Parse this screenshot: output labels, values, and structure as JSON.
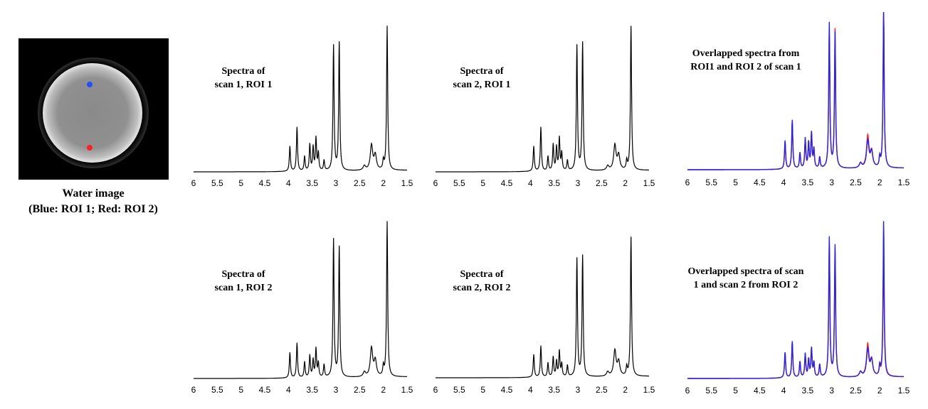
{
  "water_image": {
    "caption_line1": "Water image",
    "caption_line2": "(Blue: ROI 1; Red: ROI 2)",
    "roi1_color": "#1f4fff",
    "roi2_color": "#ff2020"
  },
  "chart_data": [
    {
      "id": "s1r1",
      "type": "line",
      "title_lines": [
        "Spectra of",
        "scan 1, ROI 1"
      ],
      "xlim": [
        6,
        1.5
      ],
      "xticks": [
        "6",
        "5.5",
        "5",
        "4.5",
        "4",
        "3.5",
        "3",
        "2.5",
        "2",
        "1.5"
      ],
      "series": [
        {
          "color": "#000000",
          "peaks": [
            [
              3.05,
              0.85
            ],
            [
              2.93,
              0.87
            ],
            [
              1.92,
              0.98
            ],
            [
              3.82,
              0.3
            ],
            [
              3.97,
              0.17
            ],
            [
              3.55,
              0.18
            ],
            [
              3.48,
              0.16
            ],
            [
              3.42,
              0.22
            ],
            [
              3.37,
              0.12
            ],
            [
              3.66,
              0.1
            ],
            [
              2.25,
              0.17
            ],
            [
              2.17,
              0.1
            ],
            [
              3.25,
              0.07
            ],
            [
              2.0,
              0.06
            ],
            [
              2.4,
              0.03
            ]
          ]
        }
      ]
    },
    {
      "id": "s2r1",
      "type": "line",
      "title_lines": [
        "Spectra of",
        "scan 2, ROI 1"
      ],
      "xlim": [
        6,
        1.5
      ],
      "xticks": [
        "6",
        "5.5",
        "5",
        "4.5",
        "4",
        "3.5",
        "3",
        "2.5",
        "2",
        "1.5"
      ],
      "series": [
        {
          "color": "#000000",
          "peaks": [
            [
              3.02,
              0.85
            ],
            [
              2.9,
              0.87
            ],
            [
              1.88,
              0.98
            ],
            [
              3.78,
              0.3
            ],
            [
              3.93,
              0.17
            ],
            [
              3.52,
              0.18
            ],
            [
              3.45,
              0.16
            ],
            [
              3.39,
              0.22
            ],
            [
              3.34,
              0.12
            ],
            [
              3.63,
              0.1
            ],
            [
              2.22,
              0.17
            ],
            [
              2.14,
              0.1
            ],
            [
              3.22,
              0.07
            ],
            [
              1.97,
              0.06
            ],
            [
              2.37,
              0.03
            ]
          ]
        }
      ]
    },
    {
      "id": "ovl1",
      "type": "line",
      "title_lines": [
        "Overlapped spectra from",
        "ROI1 and ROI 2 of scan 1"
      ],
      "xlim": [
        6,
        1.5
      ],
      "xticks": [
        "6",
        "5.5",
        "5",
        "4.5",
        "4",
        "3.5",
        "3",
        "2.5",
        "2",
        "1.5"
      ],
      "series": [
        {
          "color": "#ff1a1a",
          "peaks": [
            [
              3.05,
              0.88
            ],
            [
              2.93,
              0.88
            ],
            [
              1.92,
              0.99
            ],
            [
              3.82,
              0.3
            ],
            [
              3.97,
              0.17
            ],
            [
              3.55,
              0.18
            ],
            [
              3.48,
              0.16
            ],
            [
              3.42,
              0.22
            ],
            [
              3.37,
              0.12
            ],
            [
              3.66,
              0.1
            ],
            [
              2.25,
              0.2
            ],
            [
              2.17,
              0.1
            ],
            [
              3.25,
              0.07
            ],
            [
              2.0,
              0.06
            ],
            [
              2.4,
              0.03
            ]
          ]
        },
        {
          "color": "#2020ff",
          "peaks": [
            [
              3.05,
              0.92
            ],
            [
              2.93,
              0.86
            ],
            [
              1.92,
              1.0
            ],
            [
              3.82,
              0.31
            ],
            [
              3.97,
              0.18
            ],
            [
              3.55,
              0.19
            ],
            [
              3.48,
              0.16
            ],
            [
              3.42,
              0.22
            ],
            [
              3.37,
              0.12
            ],
            [
              3.66,
              0.1
            ],
            [
              2.25,
              0.17
            ],
            [
              2.17,
              0.1
            ],
            [
              3.25,
              0.07
            ],
            [
              2.0,
              0.06
            ],
            [
              2.4,
              0.03
            ]
          ]
        }
      ]
    },
    {
      "id": "s1r2",
      "type": "line",
      "title_lines": [
        "Spectra of",
        "scan 1, ROI 2"
      ],
      "xlim": [
        6,
        1.5
      ],
      "xticks": [
        "6",
        "5.5",
        "5",
        "4.5",
        "4",
        "3.5",
        "3",
        "2.5",
        "2",
        "1.5"
      ],
      "series": [
        {
          "color": "#000000",
          "peaks": [
            [
              3.05,
              0.87
            ],
            [
              2.93,
              0.82
            ],
            [
              1.92,
              0.98
            ],
            [
              3.82,
              0.22
            ],
            [
              3.97,
              0.16
            ],
            [
              3.55,
              0.14
            ],
            [
              3.48,
              0.11
            ],
            [
              3.42,
              0.18
            ],
            [
              3.37,
              0.09
            ],
            [
              3.66,
              0.1
            ],
            [
              2.25,
              0.18
            ],
            [
              2.17,
              0.1
            ],
            [
              3.25,
              0.08
            ],
            [
              2.0,
              0.06
            ],
            [
              2.4,
              0.03
            ]
          ]
        }
      ]
    },
    {
      "id": "s2r2",
      "type": "line",
      "title_lines": [
        "Spectra of",
        "scan 2, ROI 2"
      ],
      "xlim": [
        6,
        1.5
      ],
      "xticks": [
        "6",
        "5.5",
        "5",
        "4.5",
        "4",
        "3.5",
        "3",
        "2.5",
        "2",
        "1.5"
      ],
      "series": [
        {
          "color": "#000000",
          "peaks": [
            [
              3.02,
              0.83
            ],
            [
              2.9,
              0.85
            ],
            [
              1.88,
              0.98
            ],
            [
              3.78,
              0.22
            ],
            [
              3.93,
              0.16
            ],
            [
              3.52,
              0.14
            ],
            [
              3.45,
              0.11
            ],
            [
              3.39,
              0.18
            ],
            [
              3.34,
              0.09
            ],
            [
              3.63,
              0.1
            ],
            [
              2.22,
              0.18
            ],
            [
              2.14,
              0.1
            ],
            [
              3.22,
              0.08
            ],
            [
              1.97,
              0.06
            ],
            [
              2.37,
              0.03
            ]
          ]
        }
      ]
    },
    {
      "id": "ovl2",
      "type": "line",
      "title_lines": [
        "Overlapped spectra of scan",
        "1 and scan 2 from ROI 2"
      ],
      "xlim": [
        6,
        1.5
      ],
      "xticks": [
        "6",
        "5.5",
        "5",
        "4.5",
        "4",
        "3.5",
        "3",
        "2.5",
        "2",
        "1.5"
      ],
      "series": [
        {
          "color": "#ff1a1a",
          "peaks": [
            [
              3.05,
              0.86
            ],
            [
              2.93,
              0.81
            ],
            [
              1.92,
              0.82
            ],
            [
              3.82,
              0.22
            ],
            [
              3.97,
              0.16
            ],
            [
              3.55,
              0.14
            ],
            [
              3.48,
              0.11
            ],
            [
              3.42,
              0.18
            ],
            [
              3.37,
              0.09
            ],
            [
              3.66,
              0.1
            ],
            [
              2.25,
              0.2
            ],
            [
              2.17,
              0.1
            ],
            [
              3.25,
              0.08
            ],
            [
              2.0,
              0.06
            ],
            [
              2.4,
              0.03
            ]
          ]
        },
        {
          "color": "#2020ff",
          "peaks": [
            [
              3.05,
              0.88
            ],
            [
              2.93,
              0.83
            ],
            [
              1.92,
              0.98
            ],
            [
              3.82,
              0.23
            ],
            [
              3.97,
              0.16
            ],
            [
              3.55,
              0.15
            ],
            [
              3.48,
              0.11
            ],
            [
              3.42,
              0.18
            ],
            [
              3.37,
              0.09
            ],
            [
              3.66,
              0.1
            ],
            [
              2.25,
              0.17
            ],
            [
              2.17,
              0.1
            ],
            [
              3.25,
              0.08
            ],
            [
              2.0,
              0.06
            ],
            [
              2.4,
              0.03
            ]
          ]
        }
      ]
    }
  ]
}
